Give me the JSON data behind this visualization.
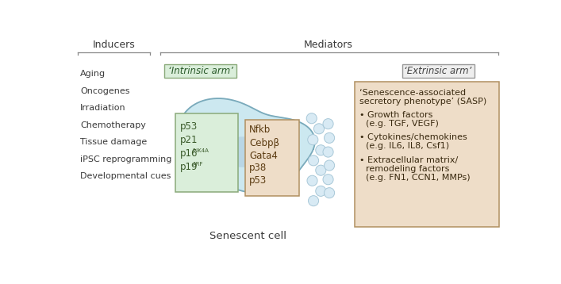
{
  "fig_width": 7.07,
  "fig_height": 3.58,
  "bg_color": "#ffffff",
  "inducers_label": "Inducers",
  "mediators_label": "Mediators",
  "intrinsic_label": "‘Intrinsic arm’",
  "extrinsic_label": "‘Extrinsic arm’",
  "senescent_label": "Senescent cell",
  "inducers_list": [
    "Aging",
    "Oncogenes",
    "Irradiation",
    "Chemotherapy",
    "Tissue damage",
    "iPSC reprogramming",
    "Developmental cues"
  ],
  "cytoplasm_box_lines": [
    "Nfkb",
    "Cebpβ",
    "Gata4",
    "p38",
    "p53"
  ],
  "sasp_title_line1": "‘Senescence-associated",
  "sasp_title_line2": "secretory phenotype’ (SASP)",
  "text_color": "#3a3a3a",
  "inducers_text_color": "#3a3a3a",
  "cell_fill": "#cce8f0",
  "cell_stroke": "#7aaabb",
  "nucleus_fill": "#daeeda",
  "nucleus_stroke": "#8aaa7a",
  "cytoplasm_fill": "#eeddc8",
  "cytoplasm_stroke": "#b09060",
  "sasp_fill": "#eeddc8",
  "sasp_stroke": "#b09060",
  "intrinsic_fill": "#daeeda",
  "intrinsic_stroke": "#8aaa7a",
  "extrinsic_fill": "#eeeeee",
  "extrinsic_stroke": "#999999",
  "dot_fill": "#d8eaf4",
  "dot_stroke": "#a8c8d8",
  "nucleus_blob_fill": "#aac8dc",
  "nucleus_blob_alpha": 0.55
}
